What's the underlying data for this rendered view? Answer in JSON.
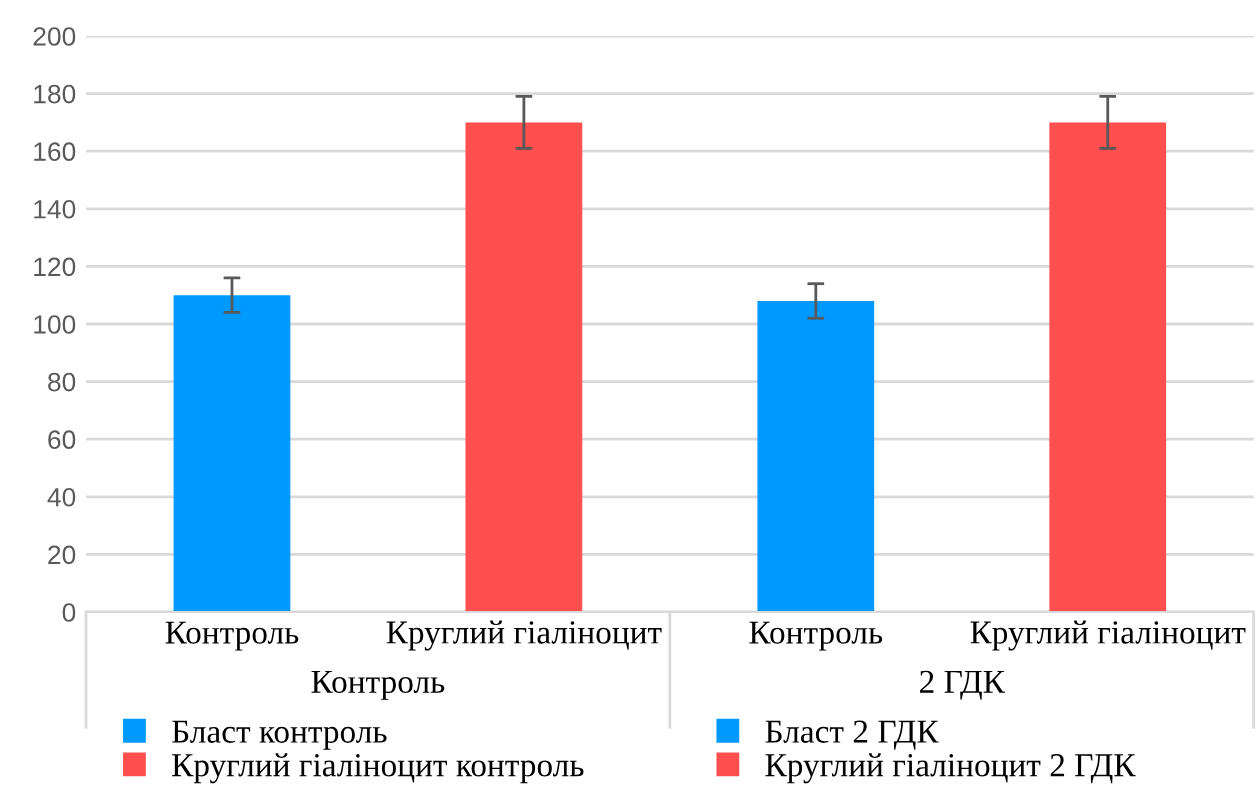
{
  "chart_data": {
    "type": "bar",
    "categories": [
      "Контроль",
      "Круглий гіаліноцит",
      "Контроль",
      "Круглий гіаліноцит"
    ],
    "series": [
      {
        "name": "Бласт контроль",
        "color": "#0099ff",
        "values": [
          110,
          null,
          null,
          null
        ],
        "errors": [
          6,
          null,
          null,
          null
        ]
      },
      {
        "name": "Круглий гіаліноцит контроль",
        "color": "#ff4f4f",
        "values": [
          null,
          170,
          null,
          null
        ],
        "errors": [
          null,
          9,
          null,
          null
        ]
      },
      {
        "name": "Бласт 2 ГДК",
        "color": "#0099ff",
        "values": [
          null,
          null,
          108,
          null
        ],
        "errors": [
          null,
          null,
          6,
          null
        ]
      },
      {
        "name": "Круглий гіаліноцит 2 ГДК",
        "color": "#ff4f4f",
        "values": [
          null,
          null,
          null,
          170
        ],
        "errors": [
          null,
          null,
          null,
          9
        ]
      }
    ],
    "annotations": [
      "Контроль",
      "2 ГДК"
    ],
    "ylim": [
      0,
      200
    ],
    "yticks": [
      0,
      20,
      40,
      60,
      80,
      100,
      120,
      140,
      160,
      180,
      200
    ],
    "grid": "y",
    "legend": "bottom"
  }
}
